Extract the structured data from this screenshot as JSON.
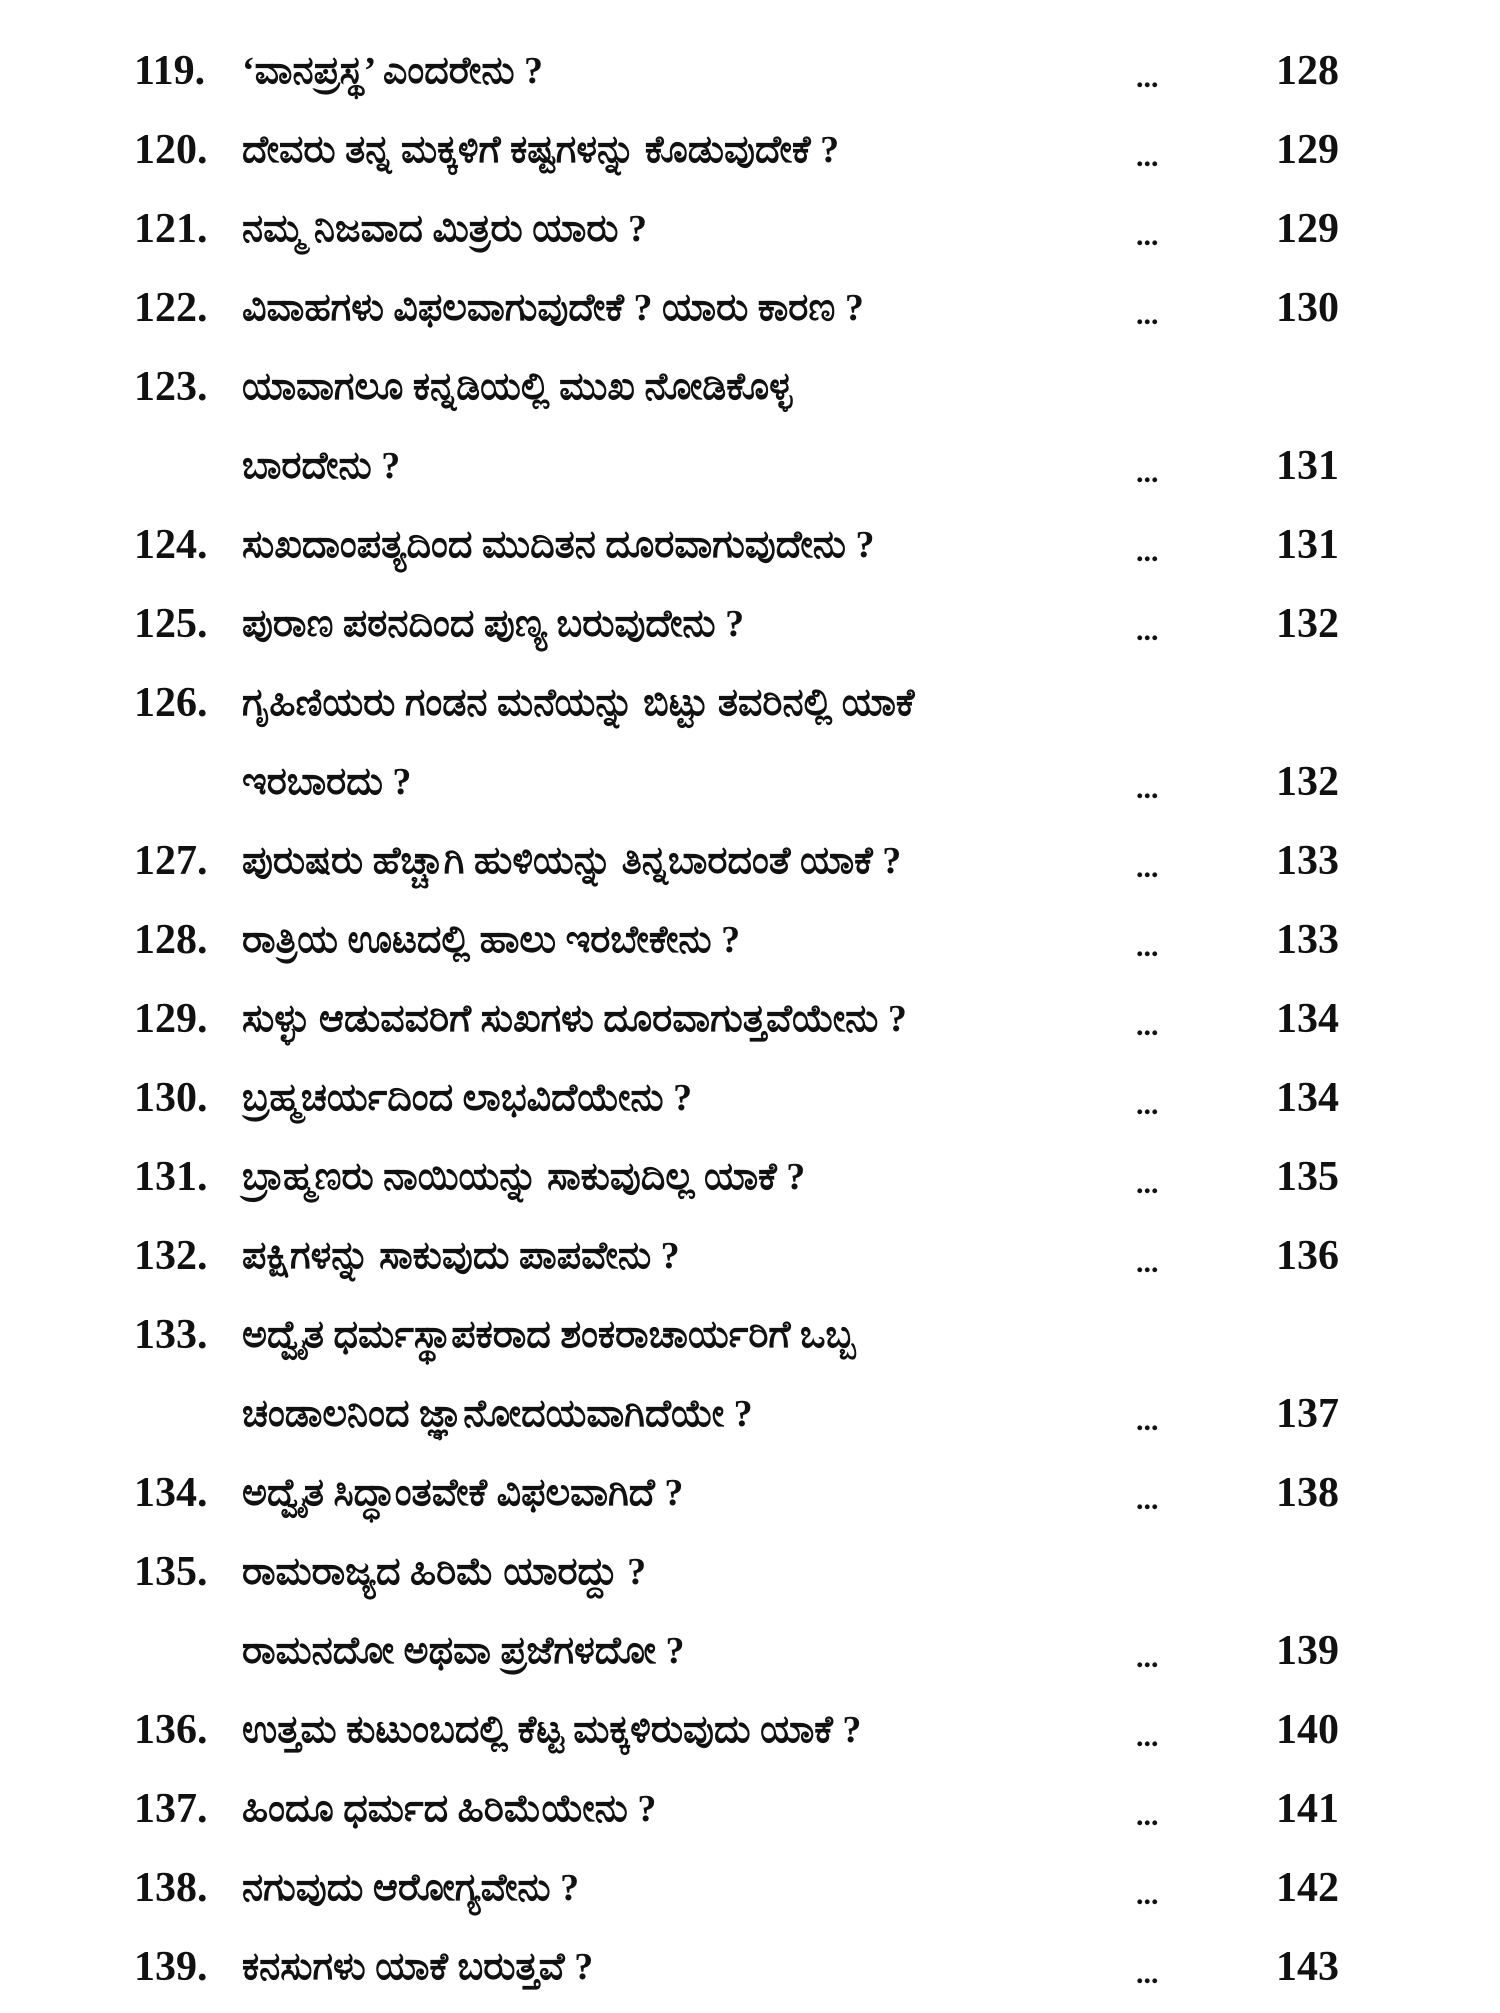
{
  "entries": [
    {
      "number": "119.",
      "lines": [
        "‘ವಾನಪ್ರಸ್ಥ’ ಎಂದರೇನು ?"
      ],
      "dots": "...",
      "page": "128"
    },
    {
      "number": "120.",
      "lines": [
        "ದೇವರು ತನ್ನ ಮಕ್ಕಳಿಗೆ ಕಷ್ಟಗಳನ್ನು ಕೊಡುವುದೇಕೆ ?"
      ],
      "dots": "...",
      "page": "129"
    },
    {
      "number": "121.",
      "lines": [
        "ನಮ್ಮ ನಿಜವಾದ ಮಿತ್ರರು ಯಾರು ?"
      ],
      "dots": "...",
      "page": "129"
    },
    {
      "number": "122.",
      "lines": [
        "ವಿವಾಹಗಳು ವಿಫಲವಾಗುವುದೇಕೆ ? ಯಾರು ಕಾರಣ ?"
      ],
      "dots": "...",
      "page": "130"
    },
    {
      "number": "123.",
      "lines": [
        "ಯಾವಾಗಲೂ ಕನ್ನಡಿಯಲ್ಲಿ ಮುಖ ನೋಡಿಕೊಳ್ಳ",
        "ಬಾರದೇನು ?"
      ],
      "dots": "...",
      "page": "131"
    },
    {
      "number": "124.",
      "lines": [
        "ಸುಖದಾಂಪತ್ಯದಿಂದ ಮುದಿತನ ದೂರವಾಗುವುದೇನು ?"
      ],
      "dots": "...",
      "page": "131"
    },
    {
      "number": "125.",
      "lines": [
        "ಪುರಾಣ ಪಠನದಿಂದ ಪುಣ್ಯ ಬರುವುದೇನು ?"
      ],
      "dots": "...",
      "page": "132"
    },
    {
      "number": "126.",
      "lines": [
        "ಗೃಹಿಣಿಯರು ಗಂಡನ ಮನೆಯನ್ನು ಬಿಟ್ಟು ತವರಿನಲ್ಲಿ ಯಾಕೆ",
        "ಇರಬಾರದು ?"
      ],
      "dots": "...",
      "page": "132"
    },
    {
      "number": "127.",
      "lines": [
        "ಪುರುಷರು ಹೆಚ್ಚಾಗಿ ಹುಳಿಯನ್ನು ತಿನ್ನಬಾರದಂತೆ ಯಾಕೆ ?"
      ],
      "dots": "...",
      "page": "133"
    },
    {
      "number": "128.",
      "lines": [
        "ರಾತ್ರಿಯ ಊಟದಲ್ಲಿ ಹಾಲು ಇರಬೇಕೇನು ?"
      ],
      "dots": "...",
      "page": "133"
    },
    {
      "number": "129.",
      "lines": [
        "ಸುಳ್ಳು ಆಡುವವರಿಗೆ ಸುಖಗಳು ದೂರವಾಗುತ್ತವೆಯೇನು ?"
      ],
      "dots": "...",
      "page": "134"
    },
    {
      "number": "130.",
      "lines": [
        "ಬ್ರಹ್ಮಚರ್ಯದಿಂದ ಲಾಭವಿದೆಯೇನು ?"
      ],
      "dots": "...",
      "page": "134"
    },
    {
      "number": "131.",
      "lines": [
        "ಬ್ರಾಹ್ಮಣರು ನಾಯಿಯನ್ನು ಸಾಕುವುದಿಲ್ಲ ಯಾಕೆ ?"
      ],
      "dots": "...",
      "page": "135"
    },
    {
      "number": "132.",
      "lines": [
        "ಪಕ್ಷಿಗಳನ್ನು ಸಾಕುವುದು ಪಾಪವೇನು ?"
      ],
      "dots": "...",
      "page": "136"
    },
    {
      "number": "133.",
      "lines": [
        "ಅದ್ವೈತ ಧರ್ಮಸ್ಥಾಪಕರಾದ ಶಂಕರಾಚಾರ್ಯರಿಗೆ ಒಬ್ಬ",
        "ಚಂಡಾಲನಿಂದ ಜ್ಞಾನೋದಯವಾಗಿದೆಯೇ ?"
      ],
      "dots": "...",
      "page": "137"
    },
    {
      "number": "134.",
      "lines": [
        "ಅದ್ವೈತ ಸಿದ್ಧಾಂತವೇಕೆ ವಿಫಲವಾಗಿದೆ ?"
      ],
      "dots": "...",
      "page": "138"
    },
    {
      "number": "135.",
      "lines": [
        "ರಾಮರಾಜ್ಯದ ಹಿರಿಮೆ ಯಾರದ್ದು ?",
        "ರಾಮನದೋ ಅಥವಾ ಪ್ರಜೆಗಳದೋ ?"
      ],
      "dots": "...",
      "page": "139"
    },
    {
      "number": "136.",
      "lines": [
        "ಉತ್ತಮ ಕುಟುಂಬದಲ್ಲಿ ಕೆಟ್ಟ ಮಕ್ಕಳಿರುವುದು ಯಾಕೆ ?"
      ],
      "dots": "...",
      "page": "140"
    },
    {
      "number": "137.",
      "lines": [
        "ಹಿಂದೂ ಧರ್ಮದ ಹಿರಿಮೆಯೇನು ?"
      ],
      "dots": "...",
      "page": "141"
    },
    {
      "number": "138.",
      "lines": [
        "ನಗುವುದು ಆರೋಗ್ಯವೇನು ?"
      ],
      "dots": "...",
      "page": "142"
    },
    {
      "number": "139.",
      "lines": [
        "ಕನಸುಗಳು ಯಾಕೆ ಬರುತ್ತವೆ ?"
      ],
      "dots": "...",
      "page": "143"
    }
  ]
}
